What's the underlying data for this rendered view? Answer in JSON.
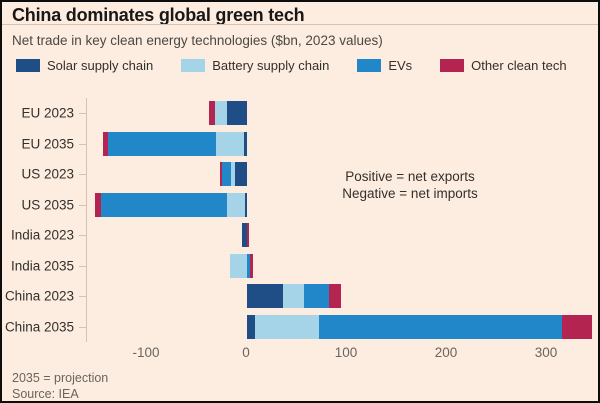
{
  "header": {
    "title": "China dominates global green tech",
    "subtitle": "Net trade in key clean energy technologies ($bn, 2023 values)"
  },
  "legend": {
    "items": [
      {
        "label": "Solar supply chain",
        "color": "#1f4e87"
      },
      {
        "label": "Battery supply chain",
        "color": "#a5d4e9"
      },
      {
        "label": "EVs",
        "color": "#2287c8"
      },
      {
        "label": "Other clean tech",
        "color": "#b32450"
      }
    ]
  },
  "annotation": {
    "line1": "Positive = net exports",
    "line2": "Negative = net imports"
  },
  "footer": {
    "note": "2035 = projection",
    "source": "Source: IEA"
  },
  "colors": {
    "background": "#fcede0",
    "frame_border": "#0d0d0d",
    "axis_line": "#d2c3b4",
    "tick_label": "#6b645e",
    "category_label": "#33302c"
  },
  "chart_data": {
    "type": "bar",
    "orientation": "horizontal-stacked",
    "title": "China dominates global green tech",
    "subtitle": "Net trade in key clean energy technologies ($bn, 2023 values)",
    "unit": "$bn, 2023 values",
    "categories": [
      "EU 2023",
      "EU 2035",
      "US 2023",
      "US 2035",
      "India 2023",
      "India 2035",
      "China 2023",
      "China 2035"
    ],
    "series": [
      {
        "name": "Solar supply chain",
        "key": "solar",
        "color": "#1f4e87",
        "values": [
          -20,
          -3,
          -12,
          -2,
          -5,
          0,
          36,
          8
        ]
      },
      {
        "name": "Battery supply chain",
        "key": "battery",
        "color": "#a5d4e9",
        "values": [
          -12,
          -28,
          -4,
          -18,
          0,
          -17,
          21,
          64
        ]
      },
      {
        "name": "EVs",
        "key": "evs",
        "color": "#2287c8",
        "values": [
          0,
          -108,
          -9,
          -126,
          0,
          3,
          25,
          243
        ]
      },
      {
        "name": "Other clean tech",
        "key": "other",
        "color": "#b32450",
        "values": [
          -6,
          -5,
          -2,
          -6,
          2,
          3,
          12,
          30
        ]
      }
    ],
    "xlim": [
      -160,
      345
    ],
    "xticks": [
      -100,
      0,
      100,
      200,
      300
    ],
    "grid": false,
    "legend_position": "top",
    "annotations": [
      "Positive = net exports",
      "Negative = net imports"
    ]
  }
}
